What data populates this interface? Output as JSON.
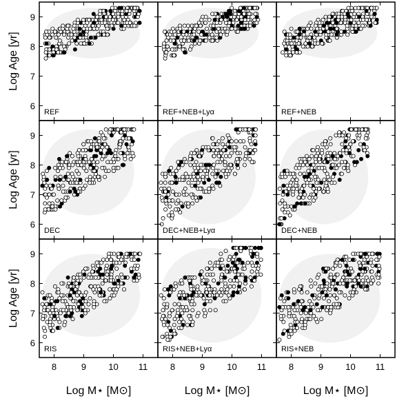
{
  "chart_data": {
    "type": "scatter",
    "layout": "3x3 grid",
    "xlabel": "Log M⋆ [M⊙]",
    "ylabel": "Log Age [yr]",
    "xlim": [
      7.5,
      11.5
    ],
    "ylim": [
      5.5,
      9.5
    ],
    "xticks": [
      "8",
      "9",
      "10",
      "11"
    ],
    "yticks": [
      "6",
      "7",
      "8",
      "9"
    ],
    "legend": "none",
    "grid": false,
    "marker_styles": {
      "open": "white circle with black edge",
      "filled": "black circle"
    },
    "panels": [
      {
        "label": "REF",
        "x_range": [
          7.7,
          10.9
        ],
        "y_range": [
          7.6,
          9.3
        ]
      },
      {
        "label": "REF+NEB+Lyα",
        "x_range": [
          7.7,
          10.9
        ],
        "y_range": [
          7.6,
          9.3
        ]
      },
      {
        "label": "REF+NEB",
        "x_range": [
          7.7,
          10.9
        ],
        "y_range": [
          7.6,
          9.3
        ]
      },
      {
        "label": "DEC",
        "x_range": [
          7.6,
          10.7
        ],
        "y_range": [
          6.3,
          9.2
        ]
      },
      {
        "label": "DEC+NEB+Lyα",
        "x_range": [
          7.6,
          10.8
        ],
        "y_range": [
          6.0,
          9.2
        ]
      },
      {
        "label": "DEC+NEB",
        "x_range": [
          7.6,
          10.6
        ],
        "y_range": [
          6.0,
          9.2
        ]
      },
      {
        "label": "RIS",
        "x_range": [
          7.6,
          10.9
        ],
        "y_range": [
          6.2,
          9.0
        ]
      },
      {
        "label": "RIS+NEB+Lyα",
        "x_range": [
          7.6,
          11.0
        ],
        "y_range": [
          6.0,
          9.2
        ]
      },
      {
        "label": "RIS+NEB",
        "x_range": [
          7.6,
          11.0
        ],
        "y_range": [
          6.0,
          9.0
        ]
      }
    ]
  },
  "colors": {
    "open_fill": "#ffffff",
    "marker_edge": "#000000",
    "filled": "#000000",
    "density_shade": "#d8d8d8"
  }
}
